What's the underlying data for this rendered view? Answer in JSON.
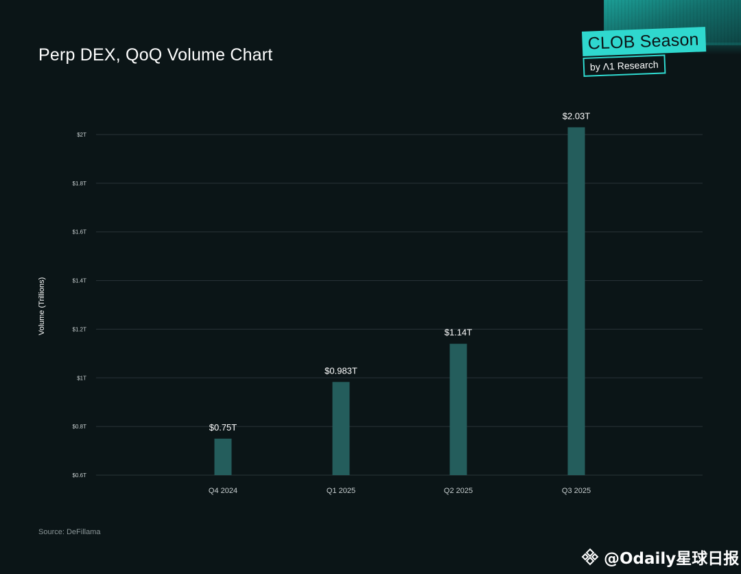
{
  "title": "Perp DEX, QoQ Volume Chart",
  "badge": {
    "top": "CLOB Season",
    "bottom": "by Λ1 Research"
  },
  "source": "Source: DeFillama",
  "watermark": {
    "text": "@Odaily星球日报",
    "icon": "binance-diamond-icon"
  },
  "colors": {
    "background": "#0b1517",
    "bar": "#245d5c",
    "accent": "#2fd8ce",
    "grid": "#2a3538"
  },
  "chart_data": {
    "type": "bar",
    "title": "Perp DEX, QoQ Volume Chart",
    "xlabel": "",
    "ylabel": "Volume (Trillions)",
    "categories": [
      "Q4 2024",
      "Q1 2025",
      "Q2 2025",
      "Q3 2025"
    ],
    "values": [
      0.75,
      0.983,
      1.14,
      2.03
    ],
    "data_labels": [
      "$0.75T",
      "$0.983T",
      "$1.14T",
      "$2.03T"
    ],
    "ylim": [
      0.6,
      2.0
    ],
    "yticks": [
      0.6,
      0.8,
      1.0,
      1.2,
      1.4,
      1.6,
      1.8,
      2.0
    ],
    "ytick_labels": [
      "$0.6T",
      "$0.8T",
      "$1T",
      "$1.2T",
      "$1.4T",
      "$1.6T",
      "$1.8T",
      "$2T"
    ],
    "grid": true
  }
}
